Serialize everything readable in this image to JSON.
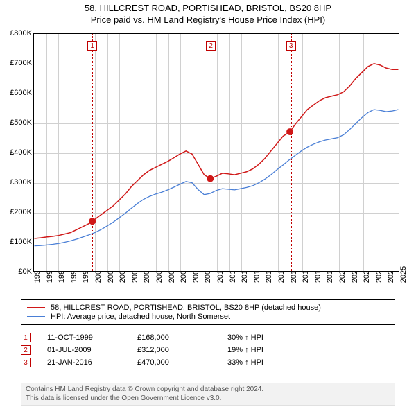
{
  "title": {
    "line1": "58, HILLCREST ROAD, PORTISHEAD, BRISTOL, BS20 8HP",
    "line2": "Price paid vs. HM Land Registry's House Price Index (HPI)"
  },
  "chart": {
    "type": "line",
    "background_color": "#ffffff",
    "grid_color": "#d0d0d0",
    "border_color": "#000000",
    "y_axis": {
      "min": 0,
      "max": 800000,
      "tick_step": 100000,
      "ticks": [
        "£0K",
        "£100K",
        "£200K",
        "£300K",
        "£400K",
        "£500K",
        "£600K",
        "£700K",
        "£800K"
      ],
      "label_fontsize": 11
    },
    "x_axis": {
      "min": 1995,
      "max": 2025,
      "tick_step": 1,
      "ticks": [
        "1995",
        "1996",
        "1997",
        "1998",
        "1999",
        "2000",
        "2001",
        "2002",
        "2003",
        "2004",
        "2005",
        "2006",
        "2007",
        "2008",
        "2009",
        "2010",
        "2011",
        "2012",
        "2013",
        "2014",
        "2015",
        "2016",
        "2017",
        "2018",
        "2019",
        "2020",
        "2021",
        "2022",
        "2023",
        "2024",
        "2025"
      ],
      "label_fontsize": 11,
      "label_rotation": -90
    },
    "series": [
      {
        "name": "price_paid",
        "label": "58, HILLCREST ROAD, PORTISHEAD, BRISTOL, BS20 8HP (detached house)",
        "color": "#d01818",
        "line_width": 1.5,
        "data": [
          [
            1995.0,
            110000
          ],
          [
            1995.5,
            112000
          ],
          [
            1996.0,
            115000
          ],
          [
            1996.5,
            117000
          ],
          [
            1997.0,
            120000
          ],
          [
            1997.5,
            125000
          ],
          [
            1998.0,
            130000
          ],
          [
            1998.5,
            140000
          ],
          [
            1999.0,
            150000
          ],
          [
            1999.5,
            160000
          ],
          [
            1999.78,
            168000
          ],
          [
            2000.0,
            175000
          ],
          [
            2000.5,
            190000
          ],
          [
            2001.0,
            205000
          ],
          [
            2001.5,
            220000
          ],
          [
            2002.0,
            240000
          ],
          [
            2002.5,
            260000
          ],
          [
            2003.0,
            285000
          ],
          [
            2003.5,
            305000
          ],
          [
            2004.0,
            325000
          ],
          [
            2004.5,
            340000
          ],
          [
            2005.0,
            350000
          ],
          [
            2005.5,
            360000
          ],
          [
            2006.0,
            370000
          ],
          [
            2006.5,
            382000
          ],
          [
            2007.0,
            395000
          ],
          [
            2007.5,
            405000
          ],
          [
            2008.0,
            395000
          ],
          [
            2008.5,
            360000
          ],
          [
            2009.0,
            325000
          ],
          [
            2009.5,
            312000
          ],
          [
            2010.0,
            320000
          ],
          [
            2010.5,
            330000
          ],
          [
            2011.0,
            328000
          ],
          [
            2011.5,
            325000
          ],
          [
            2012.0,
            330000
          ],
          [
            2012.5,
            335000
          ],
          [
            2013.0,
            345000
          ],
          [
            2013.5,
            360000
          ],
          [
            2014.0,
            380000
          ],
          [
            2014.5,
            405000
          ],
          [
            2015.0,
            430000
          ],
          [
            2015.5,
            455000
          ],
          [
            2016.06,
            470000
          ],
          [
            2016.5,
            495000
          ],
          [
            2017.0,
            520000
          ],
          [
            2017.5,
            545000
          ],
          [
            2018.0,
            560000
          ],
          [
            2018.5,
            575000
          ],
          [
            2019.0,
            585000
          ],
          [
            2019.5,
            590000
          ],
          [
            2020.0,
            595000
          ],
          [
            2020.5,
            605000
          ],
          [
            2021.0,
            625000
          ],
          [
            2021.5,
            650000
          ],
          [
            2022.0,
            670000
          ],
          [
            2022.5,
            690000
          ],
          [
            2023.0,
            700000
          ],
          [
            2023.5,
            695000
          ],
          [
            2024.0,
            685000
          ],
          [
            2024.5,
            680000
          ],
          [
            2025.0,
            680000
          ]
        ]
      },
      {
        "name": "hpi",
        "label": "HPI: Average price, detached house, North Somerset",
        "color": "#4a7fd6",
        "line_width": 1.3,
        "data": [
          [
            1995.0,
            85000
          ],
          [
            1995.5,
            86000
          ],
          [
            1996.0,
            88000
          ],
          [
            1996.5,
            90000
          ],
          [
            1997.0,
            93000
          ],
          [
            1997.5,
            97000
          ],
          [
            1998.0,
            102000
          ],
          [
            1998.5,
            108000
          ],
          [
            1999.0,
            115000
          ],
          [
            1999.5,
            122000
          ],
          [
            2000.0,
            130000
          ],
          [
            2000.5,
            140000
          ],
          [
            2001.0,
            152000
          ],
          [
            2001.5,
            165000
          ],
          [
            2002.0,
            180000
          ],
          [
            2002.5,
            195000
          ],
          [
            2003.0,
            212000
          ],
          [
            2003.5,
            228000
          ],
          [
            2004.0,
            242000
          ],
          [
            2004.5,
            252000
          ],
          [
            2005.0,
            260000
          ],
          [
            2005.5,
            266000
          ],
          [
            2006.0,
            274000
          ],
          [
            2006.5,
            283000
          ],
          [
            2007.0,
            293000
          ],
          [
            2007.5,
            302000
          ],
          [
            2008.0,
            298000
          ],
          [
            2008.5,
            275000
          ],
          [
            2009.0,
            258000
          ],
          [
            2009.5,
            262000
          ],
          [
            2010.0,
            272000
          ],
          [
            2010.5,
            278000
          ],
          [
            2011.0,
            276000
          ],
          [
            2011.5,
            274000
          ],
          [
            2012.0,
            278000
          ],
          [
            2012.5,
            282000
          ],
          [
            2013.0,
            288000
          ],
          [
            2013.5,
            298000
          ],
          [
            2014.0,
            310000
          ],
          [
            2014.5,
            325000
          ],
          [
            2015.0,
            342000
          ],
          [
            2015.5,
            358000
          ],
          [
            2016.0,
            375000
          ],
          [
            2016.5,
            390000
          ],
          [
            2017.0,
            405000
          ],
          [
            2017.5,
            418000
          ],
          [
            2018.0,
            428000
          ],
          [
            2018.5,
            436000
          ],
          [
            2019.0,
            442000
          ],
          [
            2019.5,
            446000
          ],
          [
            2020.0,
            450000
          ],
          [
            2020.5,
            460000
          ],
          [
            2021.0,
            478000
          ],
          [
            2021.5,
            498000
          ],
          [
            2022.0,
            518000
          ],
          [
            2022.5,
            535000
          ],
          [
            2023.0,
            545000
          ],
          [
            2023.5,
            542000
          ],
          [
            2024.0,
            538000
          ],
          [
            2024.5,
            540000
          ],
          [
            2025.0,
            545000
          ]
        ]
      }
    ],
    "markers": [
      {
        "x": 1999.78,
        "y": 168000,
        "color": "#d01818",
        "size": 5
      },
      {
        "x": 2009.5,
        "y": 312000,
        "color": "#d01818",
        "size": 5
      },
      {
        "x": 2016.06,
        "y": 470000,
        "color": "#d01818",
        "size": 5
      }
    ],
    "event_lines": [
      {
        "x": 1999.78,
        "label": "1",
        "color": "#c00000"
      },
      {
        "x": 2009.5,
        "label": "2",
        "color": "#c00000"
      },
      {
        "x": 2016.06,
        "label": "3",
        "color": "#c00000"
      }
    ]
  },
  "legend": {
    "items": [
      {
        "color": "#d01818",
        "label": "58, HILLCREST ROAD, PORTISHEAD, BRISTOL, BS20 8HP (detached house)"
      },
      {
        "color": "#4a7fd6",
        "label": "HPI: Average price, detached house, North Somerset"
      }
    ]
  },
  "events_table": {
    "rows": [
      {
        "num": "1",
        "date": "11-OCT-1999",
        "price": "£168,000",
        "pct": "30% ↑ HPI"
      },
      {
        "num": "2",
        "date": "01-JUL-2009",
        "price": "£312,000",
        "pct": "19% ↑ HPI"
      },
      {
        "num": "3",
        "date": "21-JAN-2016",
        "price": "£470,000",
        "pct": "33% ↑ HPI"
      }
    ]
  },
  "attribution": {
    "line1": "Contains HM Land Registry data © Crown copyright and database right 2024.",
    "line2": "This data is licensed under the Open Government Licence v3.0."
  }
}
